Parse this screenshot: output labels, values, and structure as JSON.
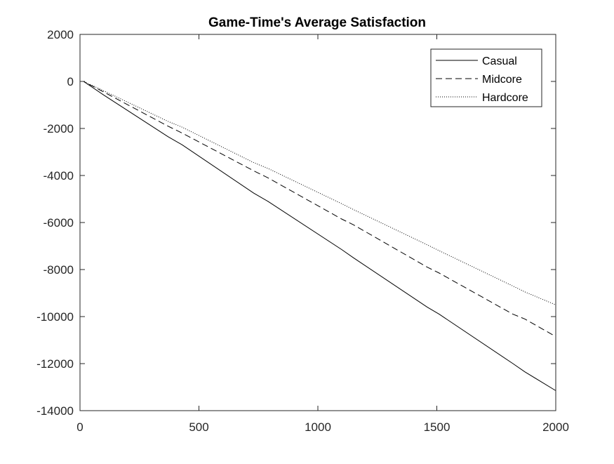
{
  "chart_data": {
    "type": "line",
    "title": "Game-Time's Average Satisfaction",
    "xlabel": "",
    "ylabel": "",
    "xlim": [
      0,
      2000
    ],
    "ylim": [
      -14000,
      2000
    ],
    "x_ticks": [
      0,
      500,
      1000,
      1500,
      2000
    ],
    "y_ticks": [
      2000,
      0,
      -2000,
      -4000,
      -6000,
      -8000,
      -10000,
      -12000,
      -14000
    ],
    "grid": false,
    "legend_position": "top-right",
    "series": [
      {
        "name": "Casual",
        "line_style": "solid",
        "color": "#000000",
        "x": [
          0,
          15,
          100,
          370,
          430,
          730,
          790,
          1100,
          1150,
          1460,
          1510,
          1820,
          1870,
          2000
        ],
        "y": [
          0,
          0,
          -580,
          -2350,
          -2700,
          -4750,
          -5100,
          -7150,
          -7500,
          -9600,
          -9900,
          -12000,
          -12350,
          -13150
        ]
      },
      {
        "name": "Midcore",
        "line_style": "dashed",
        "color": "#000000",
        "x": [
          0,
          15,
          100,
          370,
          430,
          730,
          790,
          1100,
          1150,
          1460,
          1510,
          1820,
          1870,
          2000
        ],
        "y": [
          0,
          0,
          -450,
          -1900,
          -2200,
          -3800,
          -4100,
          -5850,
          -6100,
          -7900,
          -8150,
          -9900,
          -10100,
          -10850
        ]
      },
      {
        "name": "Hardcore",
        "line_style": "dotted",
        "color": "#000000",
        "x": [
          0,
          15,
          100,
          370,
          430,
          730,
          790,
          1100,
          1150,
          1460,
          1510,
          1820,
          1870,
          2000
        ],
        "y": [
          0,
          0,
          -400,
          -1700,
          -1950,
          -3450,
          -3700,
          -5200,
          -5450,
          -6950,
          -7200,
          -8700,
          -8950,
          -9500
        ]
      }
    ]
  }
}
